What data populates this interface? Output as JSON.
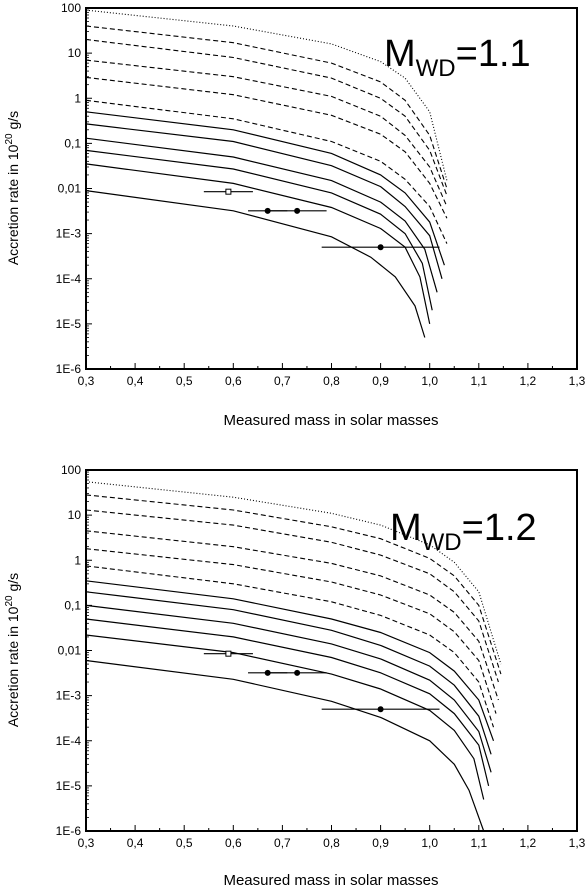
{
  "chart_data": [
    {
      "type": "line",
      "annotation": {
        "main": "M",
        "subscript": "WD",
        "suffix": "=1.1"
      },
      "xlabel": "Measured mass in solar masses",
      "ylabel": {
        "prefix": "Accretion rate in 10",
        "superscript": "20",
        "suffix": " g/s"
      },
      "xlim": [
        0.3,
        1.3
      ],
      "ylim": [
        1e-06,
        100
      ],
      "yscale": "log",
      "x_ticks": [
        "0,3",
        "0,4",
        "0,5",
        "0,6",
        "0,7",
        "0,8",
        "0,9",
        "1,0",
        "1,1",
        "1,2",
        "1,3"
      ],
      "y_ticks": [
        "1E-6",
        "1E-5",
        "1E-4",
        "1E-3",
        "0,01",
        "0,1",
        "1",
        "10",
        "100"
      ],
      "series": [
        {
          "style": "dotted",
          "x": [
            0.3,
            0.6,
            0.8,
            0.9,
            0.95,
            1.0,
            1.035
          ],
          "y": [
            90,
            40,
            16,
            6.5,
            2.8,
            0.5,
            0.015
          ]
        },
        {
          "style": "dashed",
          "x": [
            0.3,
            0.6,
            0.8,
            0.9,
            0.95,
            1.0,
            1.035
          ],
          "y": [
            40,
            17,
            6,
            2.3,
            0.9,
            0.15,
            0.01
          ]
        },
        {
          "style": "dashed",
          "x": [
            0.3,
            0.6,
            0.8,
            0.9,
            0.95,
            1.0,
            1.035
          ],
          "y": [
            20,
            8,
            2.8,
            1.0,
            0.4,
            0.07,
            0.007
          ]
        },
        {
          "style": "dashed",
          "x": [
            0.3,
            0.6,
            0.8,
            0.9,
            0.95,
            1.0,
            1.035
          ],
          "y": [
            7,
            3,
            1.1,
            0.4,
            0.15,
            0.03,
            0.004
          ]
        },
        {
          "style": "dashed",
          "x": [
            0.3,
            0.6,
            0.8,
            0.9,
            0.95,
            1.0,
            1.035
          ],
          "y": [
            2.9,
            1.2,
            0.42,
            0.16,
            0.065,
            0.013,
            0.0022
          ]
        },
        {
          "style": "dashed",
          "x": [
            0.3,
            0.6,
            0.8,
            0.9,
            0.95,
            1.0,
            1.035
          ],
          "y": [
            0.9,
            0.35,
            0.11,
            0.04,
            0.016,
            0.004,
            0.0006
          ]
        },
        {
          "style": "solid",
          "x": [
            0.3,
            0.6,
            0.8,
            0.9,
            0.95,
            1.0,
            1.03
          ],
          "y": [
            0.5,
            0.2,
            0.06,
            0.02,
            0.008,
            0.0018,
            0.0002
          ]
        },
        {
          "style": "solid",
          "x": [
            0.3,
            0.6,
            0.8,
            0.9,
            0.95,
            1.0,
            1.025
          ],
          "y": [
            0.27,
            0.11,
            0.032,
            0.011,
            0.004,
            0.0009,
            0.0001
          ]
        },
        {
          "style": "solid",
          "x": [
            0.3,
            0.6,
            0.8,
            0.9,
            0.95,
            0.99,
            1.015
          ],
          "y": [
            0.13,
            0.05,
            0.015,
            0.005,
            0.0019,
            0.00045,
            5e-05
          ]
        },
        {
          "style": "solid",
          "x": [
            0.3,
            0.6,
            0.8,
            0.9,
            0.95,
            0.985,
            1.005
          ],
          "y": [
            0.07,
            0.027,
            0.008,
            0.0027,
            0.001,
            0.00022,
            2e-05
          ]
        },
        {
          "style": "solid",
          "x": [
            0.3,
            0.6,
            0.8,
            0.9,
            0.95,
            0.98,
            1.0
          ],
          "y": [
            0.035,
            0.013,
            0.0038,
            0.0013,
            0.0005,
            0.00011,
            1e-05
          ]
        },
        {
          "style": "solid",
          "x": [
            0.3,
            0.6,
            0.8,
            0.88,
            0.93,
            0.97,
            0.99
          ],
          "y": [
            0.009,
            0.0032,
            0.00085,
            0.0003,
            0.00011,
            2.5e-05,
            5e-06
          ]
        }
      ],
      "points": [
        {
          "x": 0.59,
          "y": 0.0085,
          "xerr": [
            0.54,
            0.64
          ],
          "marker": "open-square"
        },
        {
          "x": 0.67,
          "y": 0.0032,
          "xerr": [
            0.63,
            0.71
          ],
          "marker": "filled-circle"
        },
        {
          "x": 0.73,
          "y": 0.0032,
          "xerr": [
            0.67,
            0.79
          ],
          "marker": "filled-circle"
        },
        {
          "x": 0.9,
          "y": 0.0005,
          "xerr": [
            0.78,
            1.02
          ],
          "marker": "filled-circle"
        }
      ]
    },
    {
      "type": "line",
      "annotation": {
        "main": "M",
        "subscript": "WD",
        "suffix": "=1.2"
      },
      "xlabel": "Measured mass in solar masses",
      "ylabel": {
        "prefix": "Accretion rate in 10",
        "superscript": "20",
        "suffix": " g/s"
      },
      "xlim": [
        0.3,
        1.3
      ],
      "ylim": [
        1e-06,
        100
      ],
      "yscale": "log",
      "x_ticks": [
        "0,3",
        "0,4",
        "0,5",
        "0,6",
        "0,7",
        "0,8",
        "0,9",
        "1,0",
        "1,1",
        "1,2",
        "1,3"
      ],
      "y_ticks": [
        "1E-6",
        "1E-5",
        "1E-4",
        "1E-3",
        "0,01",
        "0,1",
        "1",
        "10",
        "100"
      ],
      "series": [
        {
          "style": "dotted",
          "x": [
            0.3,
            0.6,
            0.8,
            0.9,
            1.0,
            1.05,
            1.1,
            1.145
          ],
          "y": [
            55,
            25,
            11,
            6,
            2.2,
            0.9,
            0.2,
            0.005
          ]
        },
        {
          "style": "dashed",
          "x": [
            0.3,
            0.6,
            0.8,
            0.9,
            1.0,
            1.05,
            1.1,
            1.145
          ],
          "y": [
            28,
            13,
            5.5,
            3,
            1.1,
            0.45,
            0.1,
            0.003
          ]
        },
        {
          "style": "dashed",
          "x": [
            0.3,
            0.6,
            0.8,
            0.9,
            1.0,
            1.05,
            1.1,
            1.14
          ],
          "y": [
            13,
            6,
            2.5,
            1.3,
            0.5,
            0.2,
            0.045,
            0.002
          ]
        },
        {
          "style": "dashed",
          "x": [
            0.3,
            0.6,
            0.8,
            0.9,
            1.0,
            1.05,
            1.1,
            1.14
          ],
          "y": [
            4.5,
            2,
            0.85,
            0.45,
            0.17,
            0.07,
            0.016,
            0.0008
          ]
        },
        {
          "style": "dashed",
          "x": [
            0.3,
            0.6,
            0.8,
            0.9,
            1.0,
            1.05,
            1.1,
            1.135
          ],
          "y": [
            1.8,
            0.8,
            0.33,
            0.17,
            0.065,
            0.026,
            0.006,
            0.0004
          ]
        },
        {
          "style": "dashed",
          "x": [
            0.3,
            0.6,
            0.8,
            0.9,
            1.0,
            1.05,
            1.1,
            1.13
          ],
          "y": [
            0.75,
            0.3,
            0.12,
            0.06,
            0.022,
            0.009,
            0.002,
            0.0002
          ]
        },
        {
          "style": "solid",
          "x": [
            0.3,
            0.6,
            0.8,
            0.9,
            1.0,
            1.05,
            1.1,
            1.13
          ],
          "y": [
            0.35,
            0.14,
            0.05,
            0.025,
            0.009,
            0.0035,
            0.0008,
            0.0001
          ]
        },
        {
          "style": "solid",
          "x": [
            0.3,
            0.6,
            0.8,
            0.9,
            1.0,
            1.05,
            1.1,
            1.125
          ],
          "y": [
            0.2,
            0.08,
            0.028,
            0.013,
            0.0045,
            0.0017,
            0.00035,
            5e-05
          ]
        },
        {
          "style": "solid",
          "x": [
            0.3,
            0.6,
            0.8,
            0.9,
            1.0,
            1.05,
            1.1,
            1.125
          ],
          "y": [
            0.1,
            0.04,
            0.014,
            0.0065,
            0.0022,
            0.0008,
            0.00016,
            2e-05
          ]
        },
        {
          "style": "solid",
          "x": [
            0.3,
            0.6,
            0.8,
            0.9,
            1.0,
            1.05,
            1.1,
            1.12
          ],
          "y": [
            0.05,
            0.02,
            0.007,
            0.0032,
            0.0011,
            0.0004,
            8e-05,
            1e-05
          ]
        },
        {
          "style": "solid",
          "x": [
            0.3,
            0.6,
            0.8,
            0.9,
            1.0,
            1.05,
            1.09,
            1.11
          ],
          "y": [
            0.022,
            0.009,
            0.003,
            0.0014,
            0.00047,
            0.00017,
            4e-05,
            5e-06
          ]
        },
        {
          "style": "solid",
          "x": [
            0.3,
            0.6,
            0.8,
            0.9,
            1.0,
            1.05,
            1.08,
            1.11
          ],
          "y": [
            0.006,
            0.0023,
            0.00075,
            0.00033,
            0.0001,
            3e-05,
            8e-06,
            1e-06
          ]
        }
      ],
      "points": [
        {
          "x": 0.59,
          "y": 0.0085,
          "xerr": [
            0.54,
            0.64
          ],
          "marker": "open-square"
        },
        {
          "x": 0.67,
          "y": 0.0032,
          "xerr": [
            0.63,
            0.71
          ],
          "marker": "filled-circle"
        },
        {
          "x": 0.73,
          "y": 0.0032,
          "xerr": [
            0.67,
            0.79
          ],
          "marker": "filled-circle"
        },
        {
          "x": 0.9,
          "y": 0.0005,
          "xerr": [
            0.78,
            1.02
          ],
          "marker": "filled-circle"
        }
      ]
    }
  ]
}
